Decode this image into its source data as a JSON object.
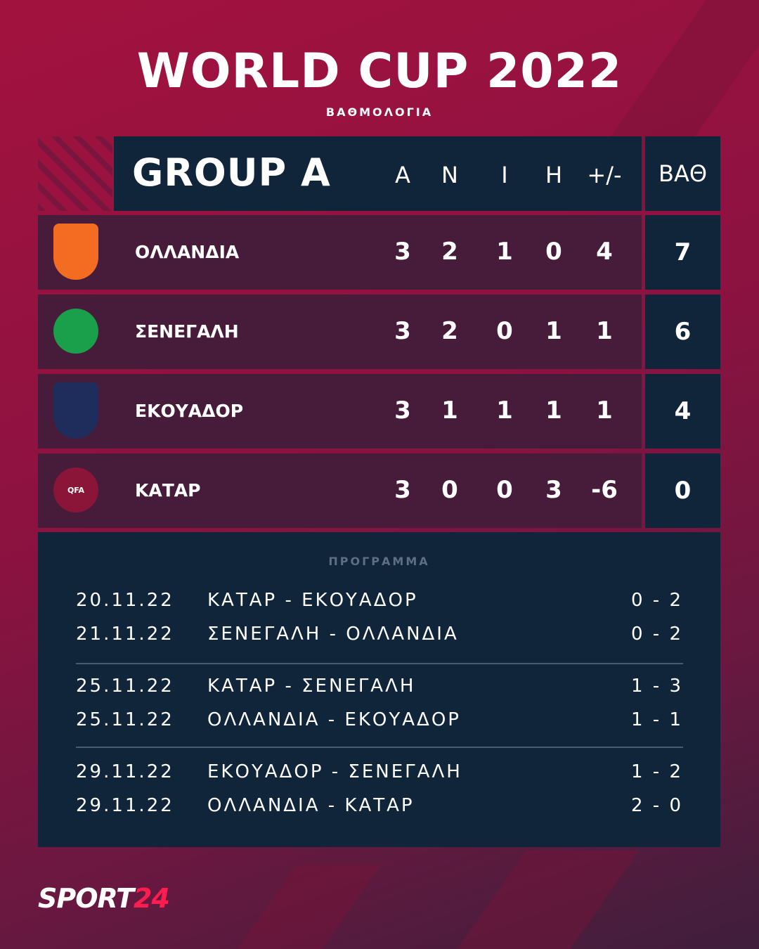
{
  "title": "WORLD CUP 2022",
  "subtitle": "ΒΑΘΜΟΛΟΓΙΑ",
  "group": "GROUP A",
  "columns": [
    "Α",
    "Ν",
    "Ι",
    "Η",
    "+/-"
  ],
  "points_header": "ΒΑΘ",
  "teams": [
    {
      "name": "ΟΛΛΑΝΔΙΑ",
      "played": "3",
      "won": "2",
      "drawn": "1",
      "lost": "0",
      "gd": "4",
      "pts": "7",
      "logo": "knvb-crest",
      "color": "#f36c21"
    },
    {
      "name": "ΣΕΝΕΓΑΛΗ",
      "played": "3",
      "won": "2",
      "drawn": "0",
      "lost": "1",
      "gd": "1",
      "pts": "6",
      "logo": "senegal-fa-crest",
      "color": "#1a9f4a"
    },
    {
      "name": "ΕΚΟΥΑΔΟΡ",
      "played": "3",
      "won": "1",
      "drawn": "1",
      "lost": "1",
      "gd": "1",
      "pts": "4",
      "logo": "fef-crest",
      "color": "#1f2d5c"
    },
    {
      "name": "ΚΑΤΑΡ",
      "played": "3",
      "won": "0",
      "drawn": "0",
      "lost": "3",
      "gd": "-6",
      "pts": "0",
      "logo": "qfa-crest",
      "logo_text": "QFA",
      "color": "#8a1538"
    }
  ],
  "schedule": {
    "title": "ΠΡΟΓΡΑΜΜΑ",
    "matches": [
      {
        "date": "20.11.22",
        "teams": "ΚΑΤΑΡ - ΕΚΟΥΑΔΟΡ",
        "score": "0 - 2"
      },
      {
        "date": "21.11.22",
        "teams": "ΣΕΝΕΓΑΛΗ - ΟΛΛΑΝΔΙΑ",
        "score": "0 - 2"
      },
      {
        "date": "25.11.22",
        "teams": "ΚΑΤΑΡ - ΣΕΝΕΓΑΛΗ",
        "score": "1 - 3"
      },
      {
        "date": "25.11.22",
        "teams": "ΟΛΛΑΝΔΙΑ - ΕΚΟΥΑΔΟΡ",
        "score": "1 - 1"
      },
      {
        "date": "29.11.22",
        "teams": "ΕΚΟΥΑΔΟΡ - ΣΕΝΕΓΑΛΗ",
        "score": "1 - 2"
      },
      {
        "date": "29.11.22",
        "teams": "ΟΛΛΑΝΔΙΑ - ΚΑΤΑΡ",
        "score": "2 - 0"
      }
    ]
  },
  "brand": {
    "word": "SPORT",
    "number": "24",
    "accent": "#ff1d4f"
  }
}
